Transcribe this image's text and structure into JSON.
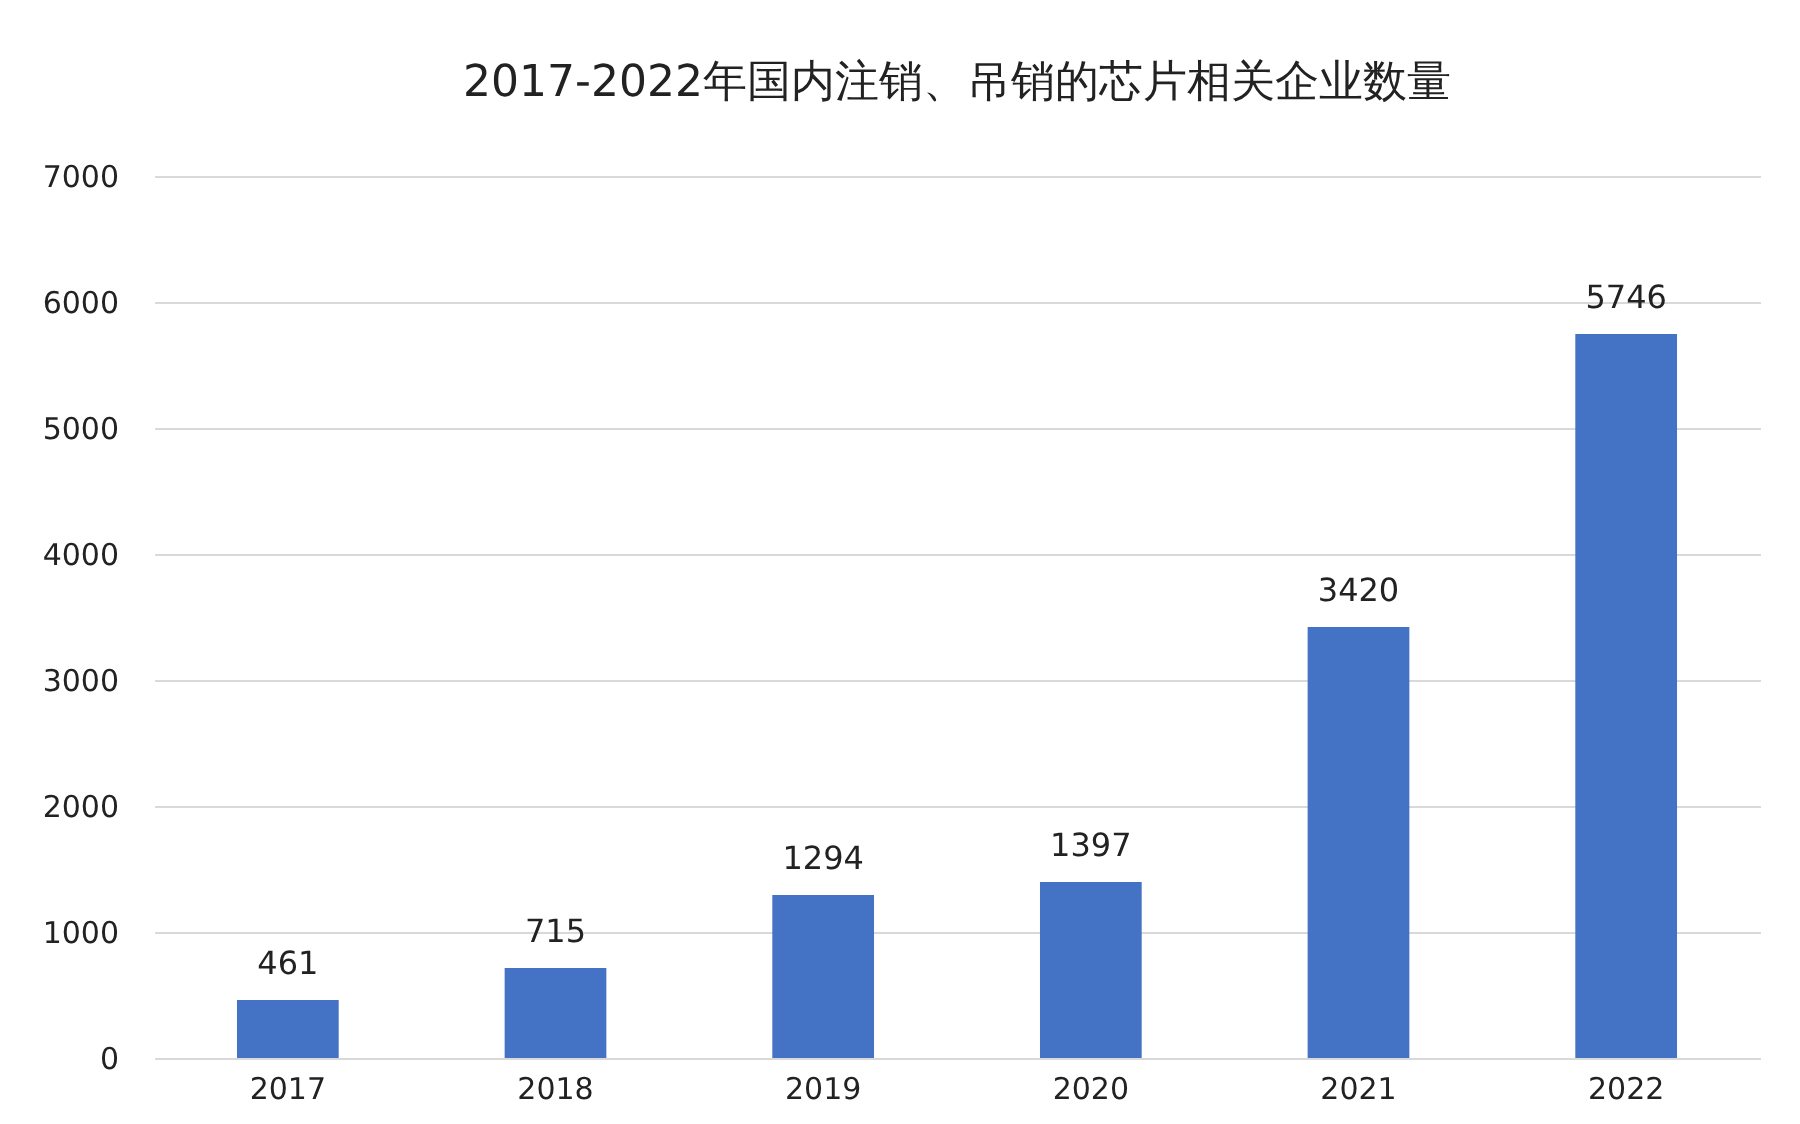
{
  "chart_data": {
    "type": "bar",
    "title": "2017-2022年国内注销、吊销的芯片相关企业数量",
    "categories": [
      "2017",
      "2018",
      "2019",
      "2020",
      "2021",
      "2022"
    ],
    "values": [
      461,
      715,
      1294,
      1397,
      3420,
      5746
    ],
    "color": "#4472c4",
    "ylim": [
      0,
      7000
    ],
    "yticks": [
      0,
      1000,
      2000,
      3000,
      4000,
      5000,
      6000,
      7000
    ],
    "grid": "y",
    "data_labels": true
  }
}
